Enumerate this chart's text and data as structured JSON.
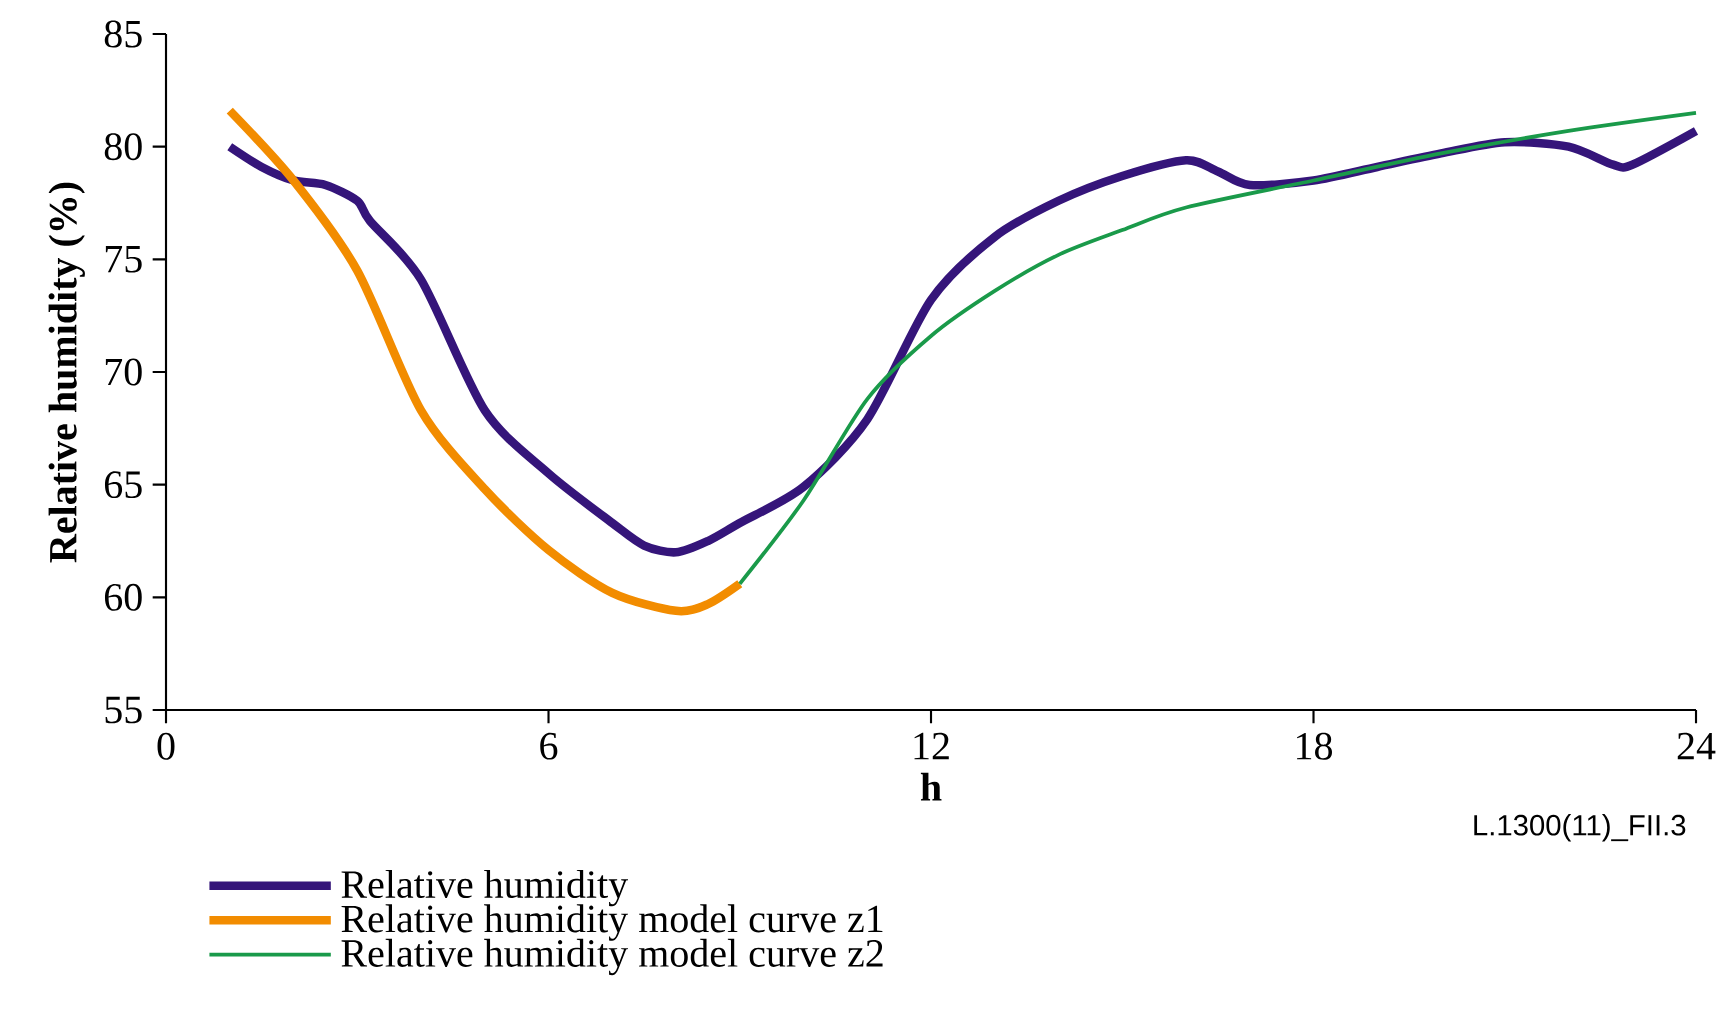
{
  "chart_data": {
    "type": "line",
    "xlabel": "h",
    "ylabel": "Relative humidity (%)",
    "xlim": [
      0,
      24
    ],
    "ylim": [
      55,
      85
    ],
    "xticks": [
      0,
      6,
      12,
      18,
      24
    ],
    "yticks": [
      55,
      60,
      65,
      70,
      75,
      80,
      85
    ],
    "legend": "bottom",
    "annotations": [
      "L.1300(11)_FII.3"
    ],
    "series": [
      {
        "name": "Relative humidity",
        "color": "#35157a",
        "x": [
          1,
          1.5,
          2,
          2.5,
          3,
          3.2,
          4,
          5,
          6,
          7,
          7.5,
          8,
          8.5,
          9,
          10,
          11,
          12,
          13,
          14,
          15,
          16,
          16.5,
          17,
          18,
          19,
          20,
          21,
          22,
          22.7,
          23,
          24
        ],
        "values": [
          80.0,
          79.1,
          78.5,
          78.3,
          77.6,
          76.7,
          74.1,
          68.3,
          65.5,
          63.3,
          62.3,
          62.0,
          62.5,
          63.3,
          64.9,
          67.9,
          73.2,
          76.0,
          77.6,
          78.7,
          79.4,
          78.9,
          78.3,
          78.5,
          79.1,
          79.7,
          80.2,
          80.0,
          79.2,
          79.2,
          80.7
        ]
      },
      {
        "name": "Relative humidity model curve z1",
        "color": "#f28c00",
        "x": [
          1,
          2,
          3,
          4,
          5,
          6,
          7,
          8,
          8.5,
          9
        ],
        "values": [
          81.6,
          78.5,
          74.5,
          68.3,
          64.8,
          62.1,
          60.2,
          59.4,
          59.7,
          60.6
        ]
      },
      {
        "name": "Relative humidity model curve z2",
        "color": "#1a9a4a",
        "x": [
          9,
          10,
          11,
          12,
          13,
          14,
          15,
          16,
          18,
          20,
          22,
          24
        ],
        "values": [
          60.6,
          64.3,
          68.8,
          71.6,
          73.6,
          75.2,
          76.3,
          77.3,
          78.5,
          79.7,
          80.7,
          81.5
        ]
      }
    ]
  }
}
